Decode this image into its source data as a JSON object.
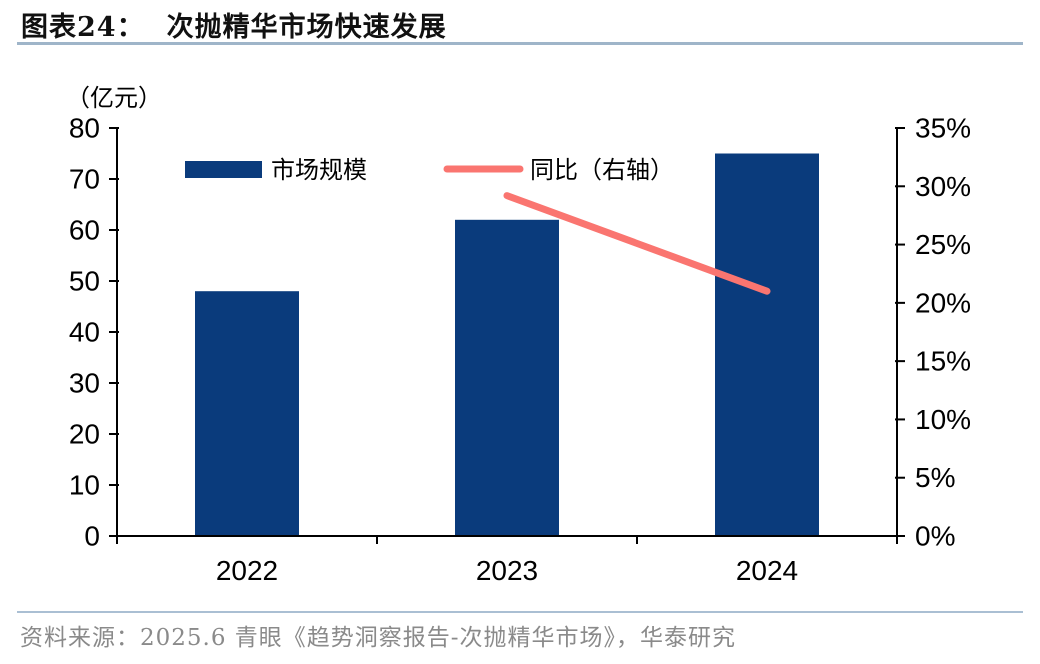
{
  "title": {
    "prefix": "图表24：",
    "text": "次抛精华市场快速发展"
  },
  "source": {
    "text": "资料来源：2025.6 青眼《趋势洞察报告-次抛精华市场》，华泰研究"
  },
  "colors": {
    "bar": "#0a3b7c",
    "line": "#fa7570",
    "axis": "#000000",
    "title_rule": "#9fb5c9",
    "source_rule": "#aabfd3",
    "source_text": "#8a8a8a",
    "title_text": "#111111"
  },
  "chart_data": {
    "type": "bar",
    "subtype": "bar+line-combo",
    "categories": [
      "2022",
      "2023",
      "2024"
    ],
    "series": [
      {
        "name": "市场规模",
        "type": "bar",
        "axis": "left",
        "values": [
          48,
          62,
          75
        ]
      },
      {
        "name": "同比（右轴）",
        "type": "line",
        "axis": "right",
        "values": [
          null,
          29.2,
          21.0
        ]
      }
    ],
    "left_axis": {
      "unit": "（亿元）",
      "min": 0,
      "max": 80,
      "step": 10,
      "tick_labels": [
        "0",
        "10",
        "20",
        "30",
        "40",
        "50",
        "60",
        "70",
        "80"
      ]
    },
    "right_axis": {
      "min": 0,
      "max": 35,
      "step": 5,
      "format": "percent",
      "tick_labels": [
        "0%",
        "5%",
        "10%",
        "15%",
        "20%",
        "25%",
        "30%",
        "35%"
      ]
    },
    "grid": false,
    "legend_position": "top-inside",
    "title": "次抛精华市场快速发展"
  }
}
